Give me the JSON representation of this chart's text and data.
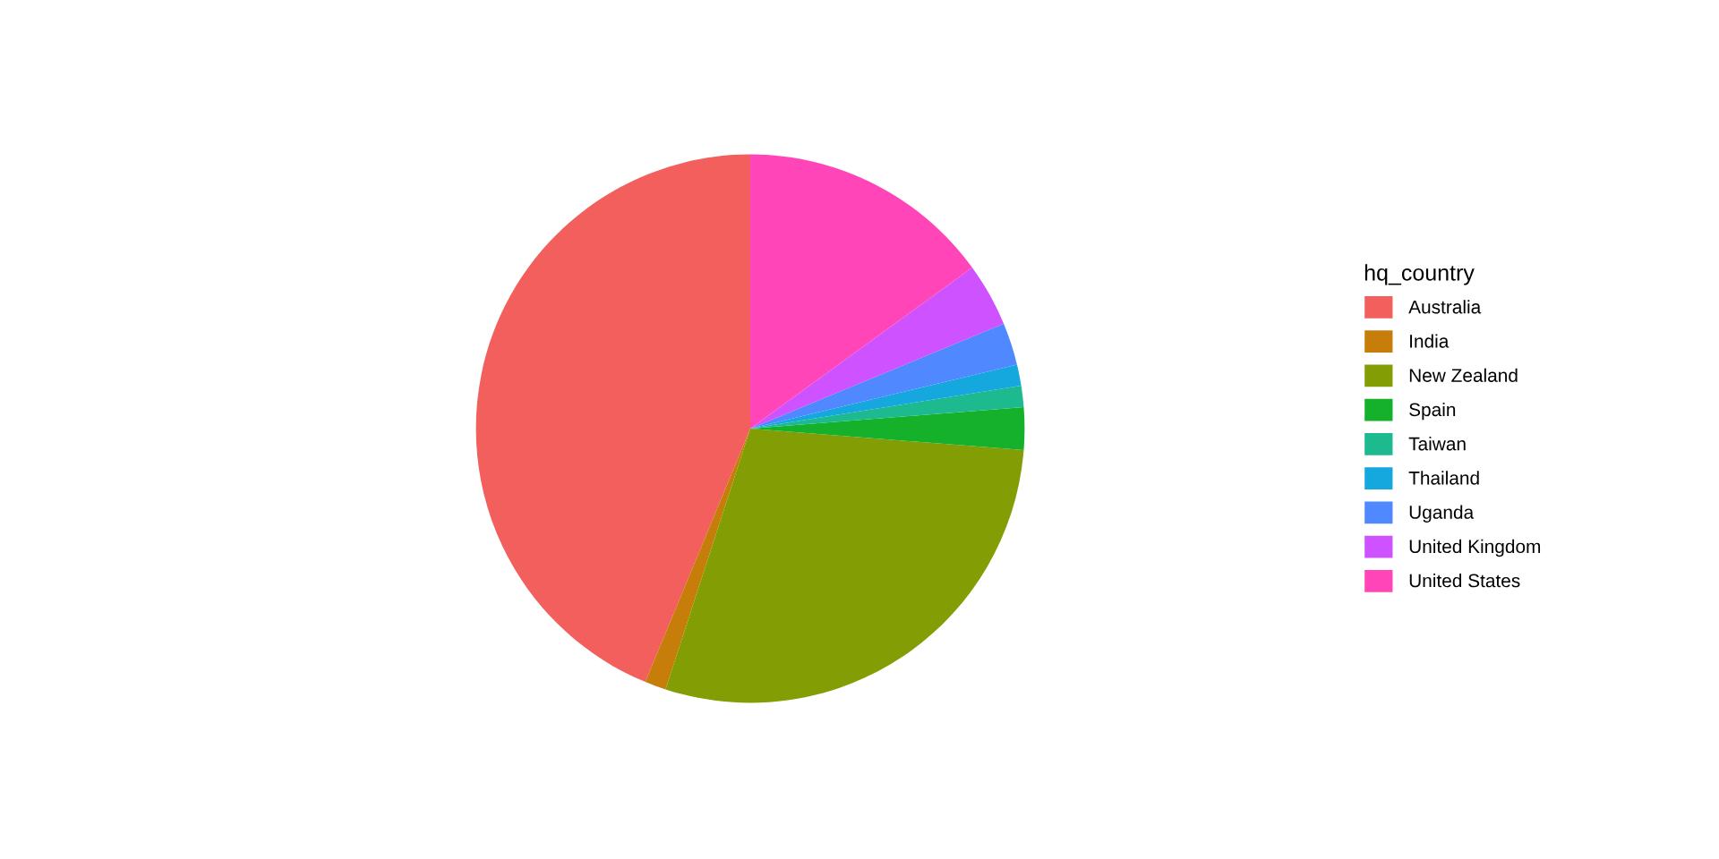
{
  "chart_data": {
    "type": "pie",
    "legend_title": "hq_country",
    "categories": [
      "Australia",
      "India",
      "New Zealand",
      "Spain",
      "Taiwan",
      "Thailand",
      "Uganda",
      "United Kingdom",
      "United States"
    ],
    "values": [
      43.75,
      1.25,
      28.75,
      2.5,
      1.25,
      1.25,
      2.5,
      3.75,
      15
    ],
    "colors": [
      "#f25f5c",
      "#c77d0a",
      "#839e04",
      "#15b12a",
      "#1db98f",
      "#14a8df",
      "#5088ff",
      "#ce52ff",
      "#ff45b8"
    ],
    "legend": "right"
  }
}
